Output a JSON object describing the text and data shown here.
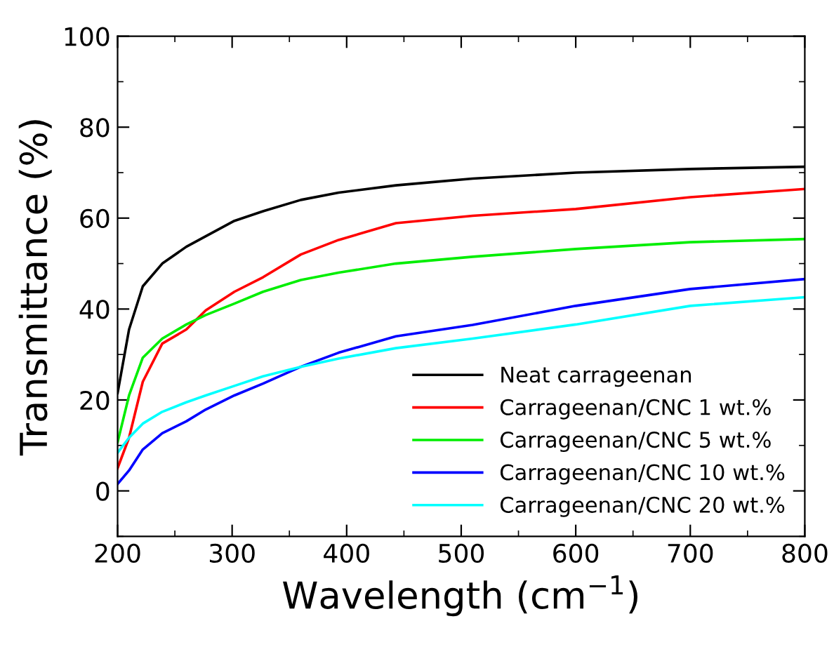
{
  "chart_data": {
    "type": "line",
    "xlabel": "Wavelength (cm$^{−1}$)",
    "ylabel": "Transmittance (%)",
    "x": [
      200,
      210,
      222,
      239,
      260,
      277,
      302,
      327,
      360,
      393,
      443,
      510,
      600,
      700,
      800
    ],
    "xlim": [
      200,
      800
    ],
    "xticks": [
      200,
      300,
      400,
      500,
      600,
      700,
      800
    ],
    "ylim": [
      -10,
      100
    ],
    "yticks": [
      0,
      20,
      40,
      60,
      80,
      100
    ],
    "grid": false,
    "legend": "bottom right",
    "line_style": "solid",
    "marker": "none",
    "series": [
      {
        "name": "Neat carrageenan",
        "color": "#000000",
        "values": [
          21.5,
          35.5,
          45,
          50,
          53.7,
          56,
          59.4,
          61.5,
          64,
          65.6,
          67.2,
          68.7,
          70,
          70.8,
          71.3
        ]
      },
      {
        "name": "Carrageenan/CNC 1 wt.%",
        "color": "#ff0000",
        "values": [
          5,
          11.7,
          24,
          32.4,
          35.5,
          39.7,
          43.8,
          47,
          52,
          55.2,
          58.9,
          60.5,
          62,
          64.6,
          66.4
        ]
      },
      {
        "name": "Carrageenan/CNC 5 wt.%",
        "color": "#00ee00",
        "values": [
          10.7,
          21,
          29.3,
          33.5,
          36.6,
          38.7,
          41.2,
          43.8,
          46.4,
          48,
          50,
          51.5,
          53.2,
          54.7,
          55.4
        ]
      },
      {
        "name": "Carrageenan/CNC 10 wt.%",
        "color": "#0000ff",
        "values": [
          1.5,
          4.5,
          9.1,
          12.7,
          15.3,
          17.9,
          21,
          23.6,
          27.3,
          30.4,
          34,
          36.5,
          40.7,
          44.4,
          46.6
        ]
      },
      {
        "name": "Carrageenan/CNC 20 wt.%",
        "color": "#00ffff",
        "values": [
          8.4,
          11.7,
          14.8,
          17.4,
          19.5,
          21,
          23.1,
          25.2,
          27.3,
          29.1,
          31.4,
          33.5,
          36.6,
          40.7,
          42.6
        ]
      }
    ]
  }
}
